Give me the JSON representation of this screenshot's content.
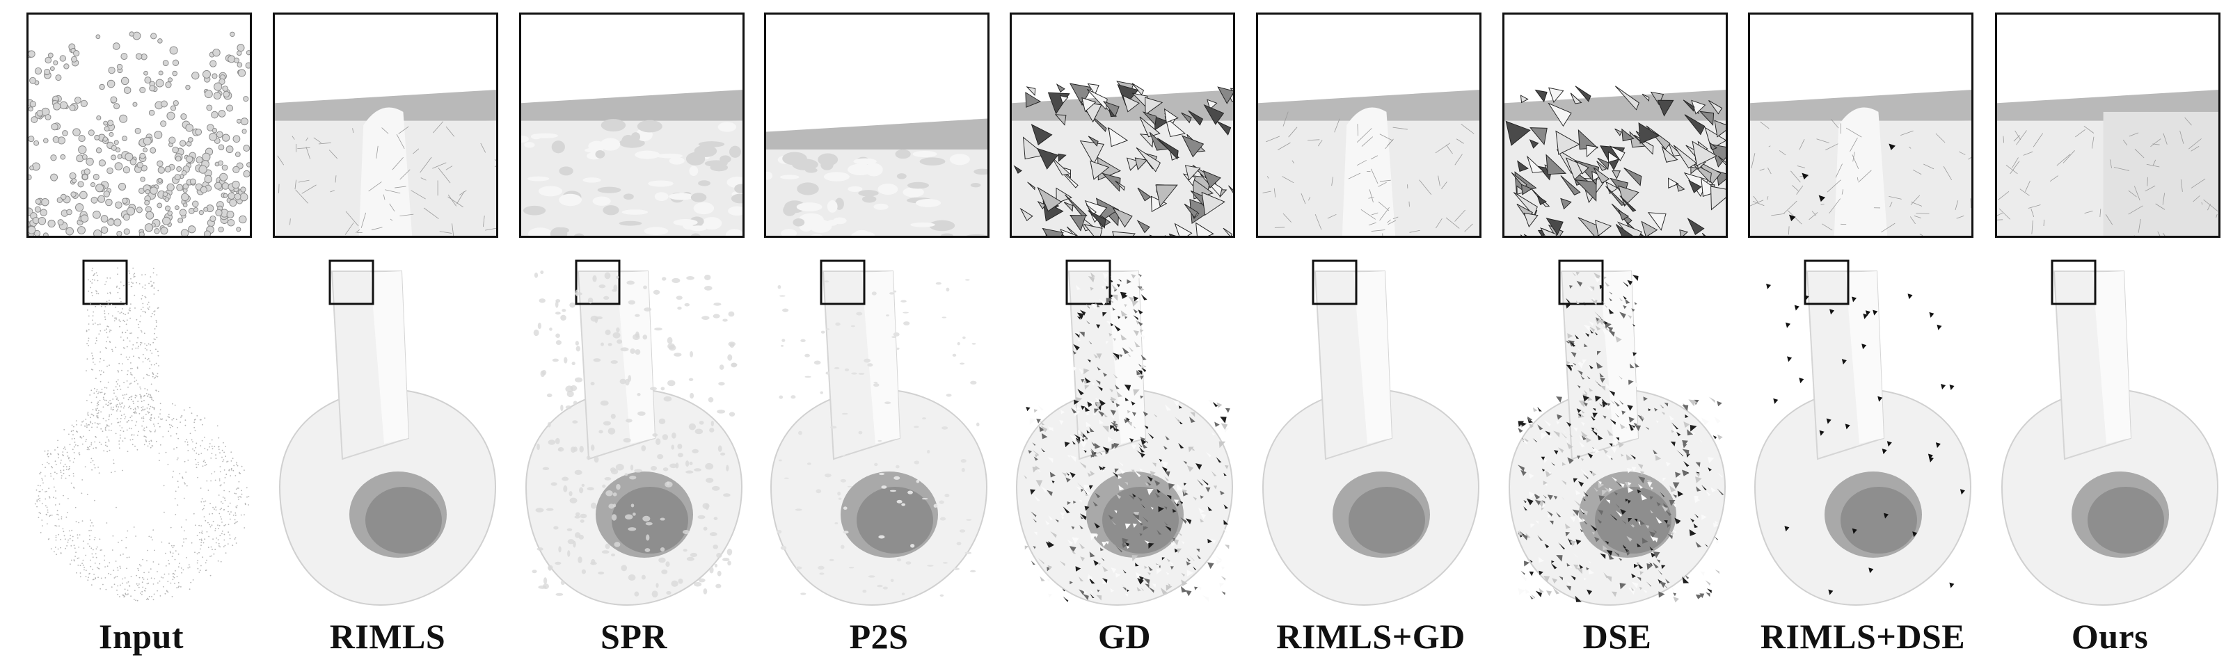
{
  "figure": {
    "methods": [
      {
        "label": "Input",
        "style": "points"
      },
      {
        "label": "RIMLS",
        "style": "smooth"
      },
      {
        "label": "SPR",
        "style": "bumpy"
      },
      {
        "label": "P2S",
        "style": "lowflat"
      },
      {
        "label": "GD",
        "style": "shards"
      },
      {
        "label": "RIMLS+GD",
        "style": "smooth"
      },
      {
        "label": "DSE",
        "style": "shards"
      },
      {
        "label": "RIMLS+DSE",
        "style": "holes"
      },
      {
        "label": "Ours",
        "style": "sharp"
      }
    ]
  },
  "colors": {
    "frame": "#111111",
    "surface": "#f2f2f2",
    "shade": "#cfcfcf",
    "dark": "#2a2a2a"
  }
}
